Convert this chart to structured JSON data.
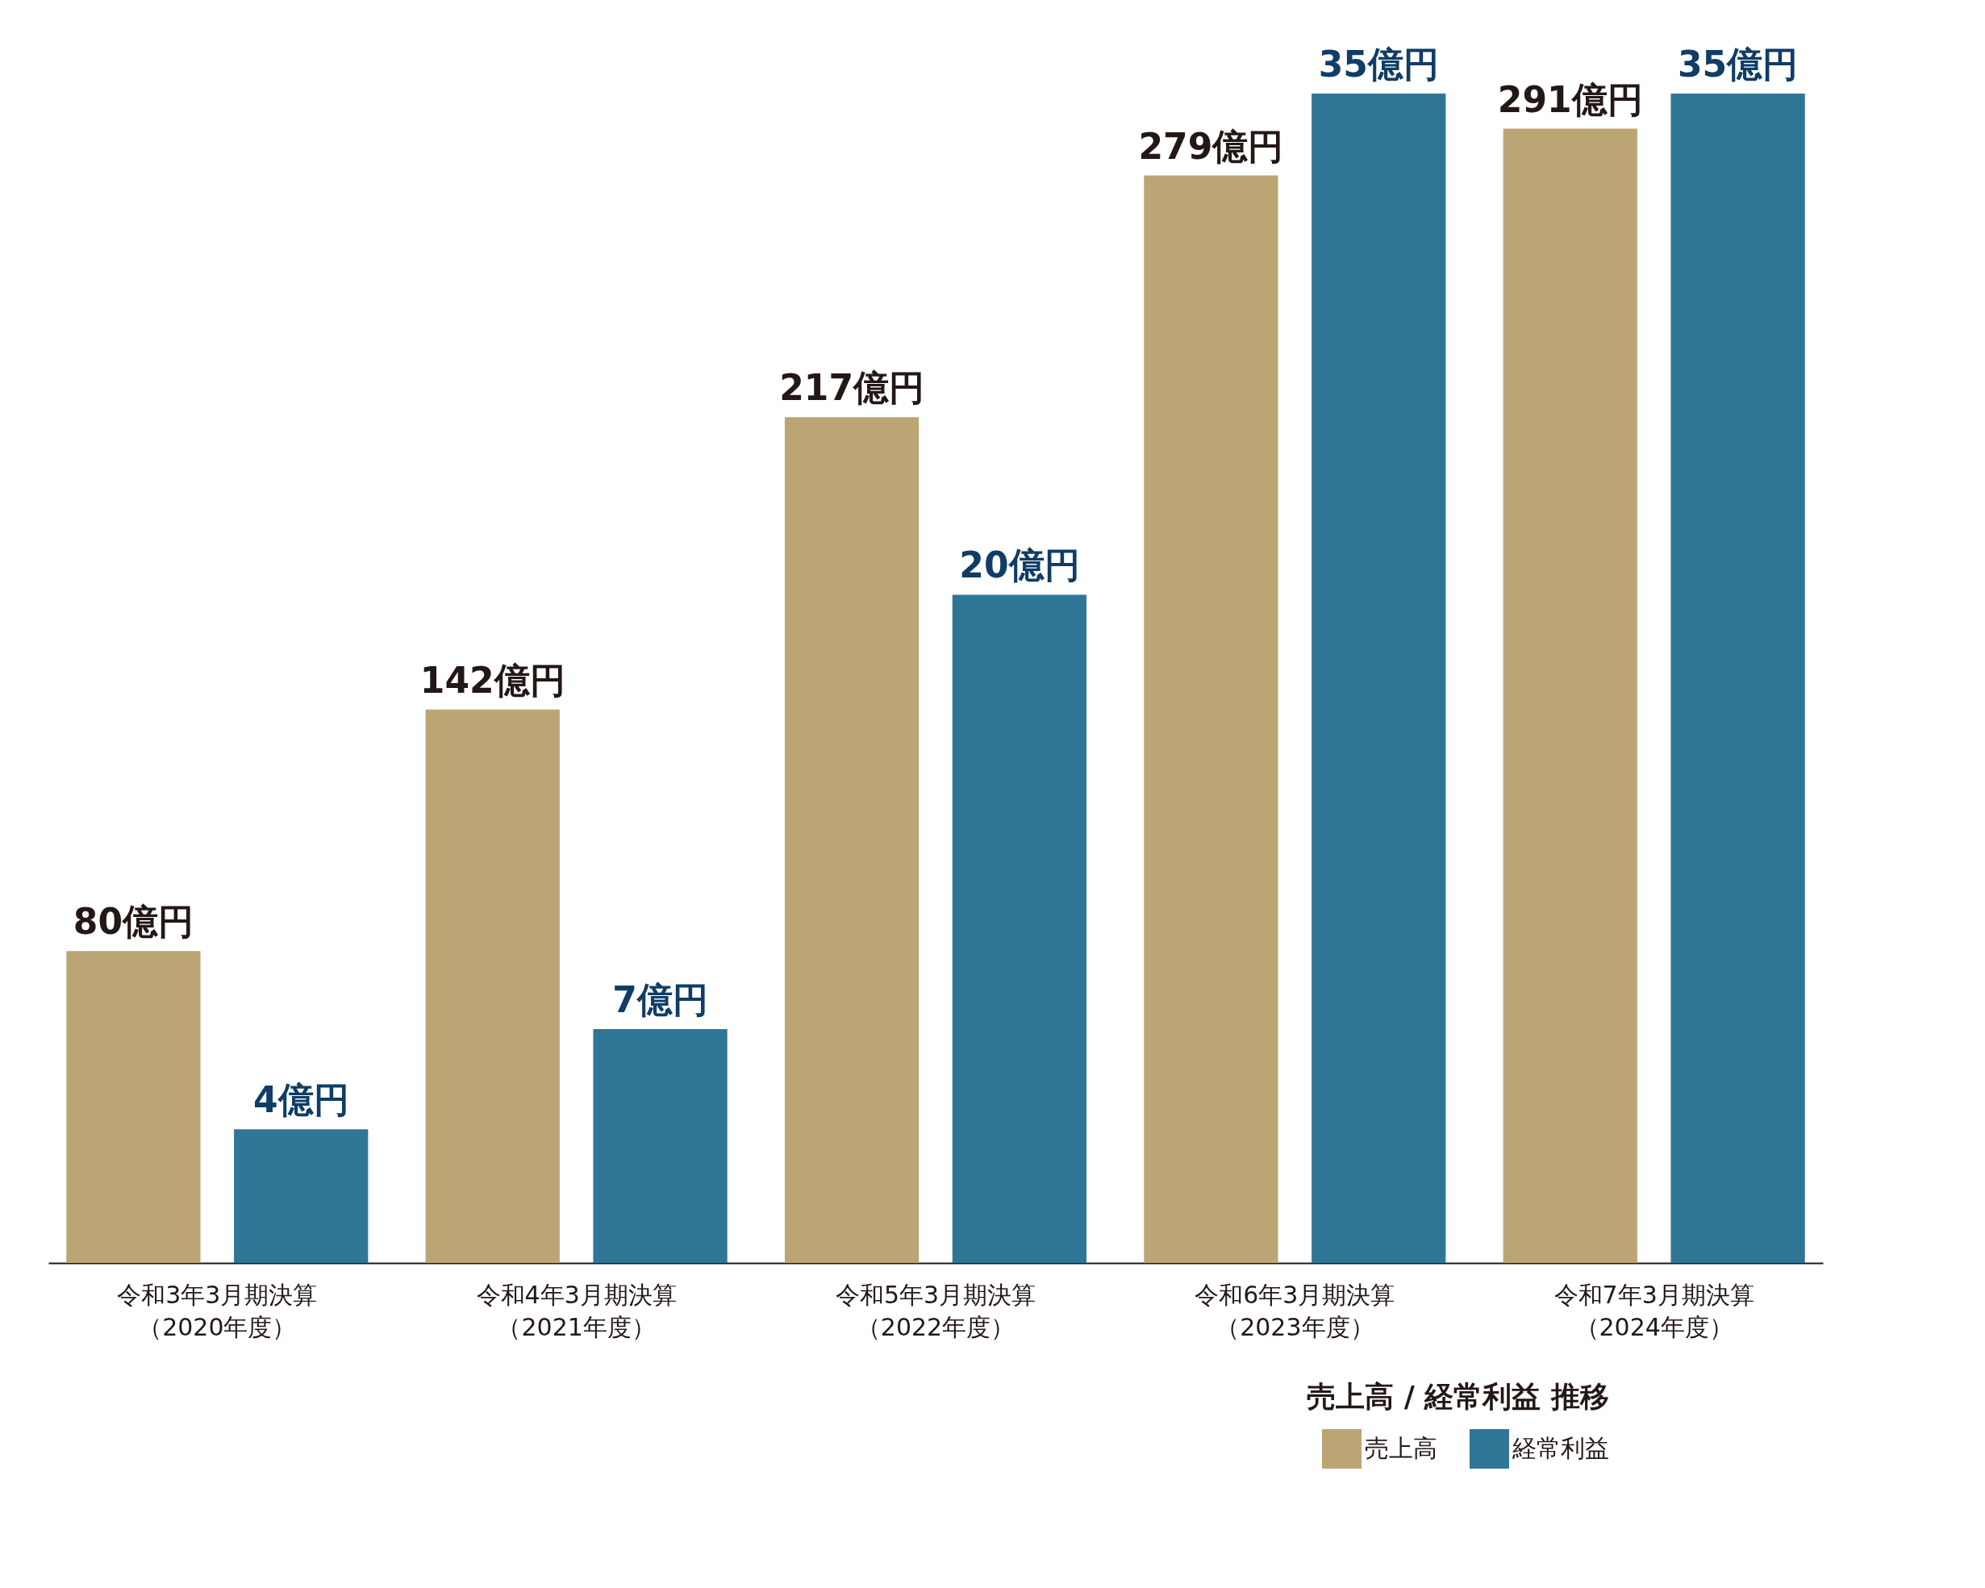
{
  "chart_data": {
    "type": "bar",
    "legend_title": "売上高 / 経常利益 推移",
    "categories": [
      "令和3年3月期決算（2020年度）",
      "令和4年3月期決算（2021年度）",
      "令和5年3月期決算（2022年度）",
      "令和6年3月期決算（2023年度）",
      "令和7年3月期決算（2024年度）"
    ],
    "series": [
      {
        "name": "売上高",
        "color": "#bba574",
        "values": [
          80,
          142,
          217,
          279,
          291
        ],
        "value_labels": [
          "80億円",
          "142億円",
          "217億円",
          "279億円",
          "291億円"
        ]
      },
      {
        "name": "経常利益",
        "color": "#2f7596",
        "axis": "y2",
        "values": [
          4,
          7,
          20,
          35,
          35
        ],
        "value_labels": [
          "4億円",
          "7億円",
          "20億円",
          "35億円",
          "35億円"
        ]
      }
    ],
    "tick_labels": "x",
    "grid": false,
    "legend": "bottom right"
  }
}
